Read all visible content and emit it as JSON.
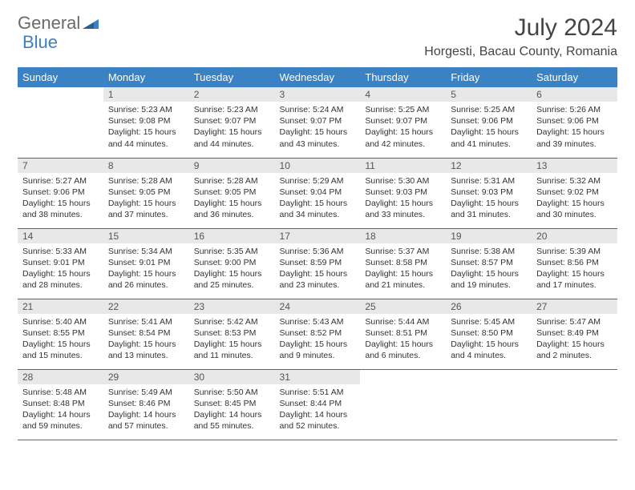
{
  "brand": {
    "part1": "General",
    "part2": "Blue"
  },
  "title": "July 2024",
  "location": "Horgesti, Bacau County, Romania",
  "colors": {
    "header_bg": "#3b82c4",
    "header_text": "#ffffff",
    "daynum_bg": "#e8e8e8",
    "row_border": "#3b6fa0",
    "brand_gray": "#6a6a6a",
    "brand_blue": "#3b82c4"
  },
  "weekdays": [
    "Sunday",
    "Monday",
    "Tuesday",
    "Wednesday",
    "Thursday",
    "Friday",
    "Saturday"
  ],
  "weeks": [
    [
      {
        "n": "",
        "sr": "",
        "ss": "",
        "dl": ""
      },
      {
        "n": "1",
        "sr": "5:23 AM",
        "ss": "9:08 PM",
        "dl": "15 hours and 44 minutes."
      },
      {
        "n": "2",
        "sr": "5:23 AM",
        "ss": "9:07 PM",
        "dl": "15 hours and 44 minutes."
      },
      {
        "n": "3",
        "sr": "5:24 AM",
        "ss": "9:07 PM",
        "dl": "15 hours and 43 minutes."
      },
      {
        "n": "4",
        "sr": "5:25 AM",
        "ss": "9:07 PM",
        "dl": "15 hours and 42 minutes."
      },
      {
        "n": "5",
        "sr": "5:25 AM",
        "ss": "9:06 PM",
        "dl": "15 hours and 41 minutes."
      },
      {
        "n": "6",
        "sr": "5:26 AM",
        "ss": "9:06 PM",
        "dl": "15 hours and 39 minutes."
      }
    ],
    [
      {
        "n": "7",
        "sr": "5:27 AM",
        "ss": "9:06 PM",
        "dl": "15 hours and 38 minutes."
      },
      {
        "n": "8",
        "sr": "5:28 AM",
        "ss": "9:05 PM",
        "dl": "15 hours and 37 minutes."
      },
      {
        "n": "9",
        "sr": "5:28 AM",
        "ss": "9:05 PM",
        "dl": "15 hours and 36 minutes."
      },
      {
        "n": "10",
        "sr": "5:29 AM",
        "ss": "9:04 PM",
        "dl": "15 hours and 34 minutes."
      },
      {
        "n": "11",
        "sr": "5:30 AM",
        "ss": "9:03 PM",
        "dl": "15 hours and 33 minutes."
      },
      {
        "n": "12",
        "sr": "5:31 AM",
        "ss": "9:03 PM",
        "dl": "15 hours and 31 minutes."
      },
      {
        "n": "13",
        "sr": "5:32 AM",
        "ss": "9:02 PM",
        "dl": "15 hours and 30 minutes."
      }
    ],
    [
      {
        "n": "14",
        "sr": "5:33 AM",
        "ss": "9:01 PM",
        "dl": "15 hours and 28 minutes."
      },
      {
        "n": "15",
        "sr": "5:34 AM",
        "ss": "9:01 PM",
        "dl": "15 hours and 26 minutes."
      },
      {
        "n": "16",
        "sr": "5:35 AM",
        "ss": "9:00 PM",
        "dl": "15 hours and 25 minutes."
      },
      {
        "n": "17",
        "sr": "5:36 AM",
        "ss": "8:59 PM",
        "dl": "15 hours and 23 minutes."
      },
      {
        "n": "18",
        "sr": "5:37 AM",
        "ss": "8:58 PM",
        "dl": "15 hours and 21 minutes."
      },
      {
        "n": "19",
        "sr": "5:38 AM",
        "ss": "8:57 PM",
        "dl": "15 hours and 19 minutes."
      },
      {
        "n": "20",
        "sr": "5:39 AM",
        "ss": "8:56 PM",
        "dl": "15 hours and 17 minutes."
      }
    ],
    [
      {
        "n": "21",
        "sr": "5:40 AM",
        "ss": "8:55 PM",
        "dl": "15 hours and 15 minutes."
      },
      {
        "n": "22",
        "sr": "5:41 AM",
        "ss": "8:54 PM",
        "dl": "15 hours and 13 minutes."
      },
      {
        "n": "23",
        "sr": "5:42 AM",
        "ss": "8:53 PM",
        "dl": "15 hours and 11 minutes."
      },
      {
        "n": "24",
        "sr": "5:43 AM",
        "ss": "8:52 PM",
        "dl": "15 hours and 9 minutes."
      },
      {
        "n": "25",
        "sr": "5:44 AM",
        "ss": "8:51 PM",
        "dl": "15 hours and 6 minutes."
      },
      {
        "n": "26",
        "sr": "5:45 AM",
        "ss": "8:50 PM",
        "dl": "15 hours and 4 minutes."
      },
      {
        "n": "27",
        "sr": "5:47 AM",
        "ss": "8:49 PM",
        "dl": "15 hours and 2 minutes."
      }
    ],
    [
      {
        "n": "28",
        "sr": "5:48 AM",
        "ss": "8:48 PM",
        "dl": "14 hours and 59 minutes."
      },
      {
        "n": "29",
        "sr": "5:49 AM",
        "ss": "8:46 PM",
        "dl": "14 hours and 57 minutes."
      },
      {
        "n": "30",
        "sr": "5:50 AM",
        "ss": "8:45 PM",
        "dl": "14 hours and 55 minutes."
      },
      {
        "n": "31",
        "sr": "5:51 AM",
        "ss": "8:44 PM",
        "dl": "14 hours and 52 minutes."
      },
      {
        "n": "",
        "sr": "",
        "ss": "",
        "dl": ""
      },
      {
        "n": "",
        "sr": "",
        "ss": "",
        "dl": ""
      },
      {
        "n": "",
        "sr": "",
        "ss": "",
        "dl": ""
      }
    ]
  ],
  "labels": {
    "sunrise": "Sunrise:",
    "sunset": "Sunset:",
    "daylight": "Daylight:"
  }
}
